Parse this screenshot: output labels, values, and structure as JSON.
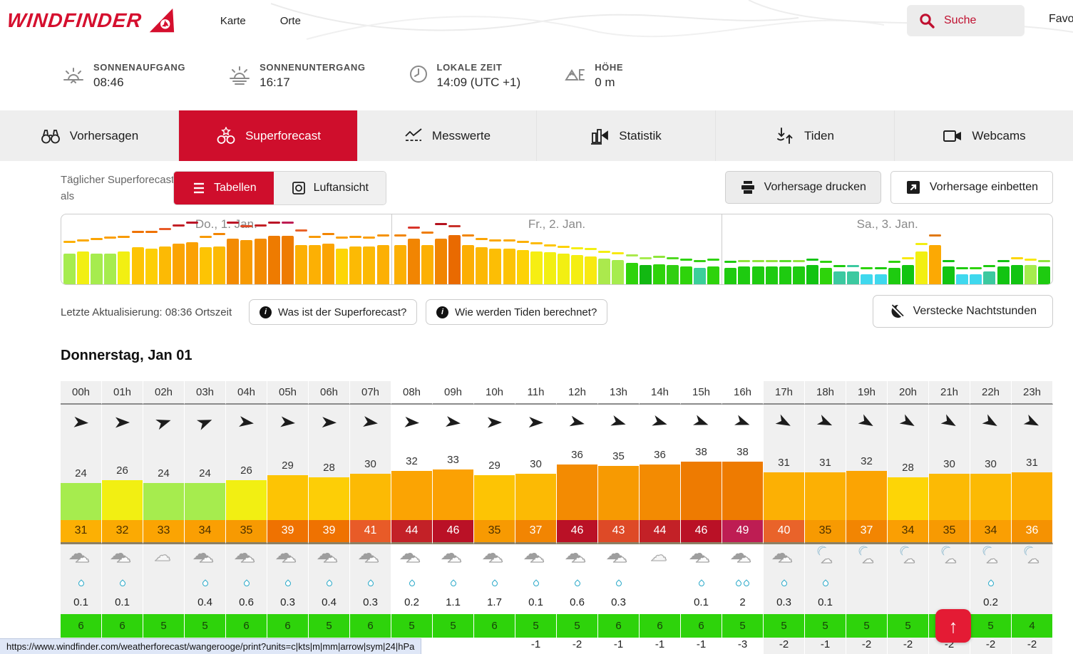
{
  "nav": {
    "brand": "WINDFINDER",
    "links": [
      {
        "label": "Karte"
      },
      {
        "label": "Orte"
      }
    ],
    "search_label": "Suche",
    "favorites_clipped": "Favo"
  },
  "infobar": {
    "items": [
      {
        "icon": "sunrise-icon",
        "label": "SONNENAUFGANG",
        "value": "08:46"
      },
      {
        "icon": "sunset-icon",
        "label": "SONNENUNTERGANG",
        "value": "16:17"
      },
      {
        "icon": "clock-icon",
        "label": "LOKALE ZEIT",
        "value": "14:09 (UTC +1)"
      },
      {
        "icon": "elevation-icon",
        "label": "HÖHE",
        "value": "0 m"
      }
    ]
  },
  "tabs": {
    "items": [
      {
        "label": "Vorhersagen",
        "icon": "binoculars-icon",
        "active": false
      },
      {
        "label": "Superforecast",
        "icon": "binoculars-star-icon",
        "active": true
      },
      {
        "label": "Messwerte",
        "icon": "measurements-chart-icon",
        "active": false
      },
      {
        "label": "Statistik",
        "icon": "statistics-bars-icon",
        "active": false
      },
      {
        "label": "Tiden",
        "icon": "tides-arrows-icon",
        "active": false
      },
      {
        "label": "Webcams",
        "icon": "webcam-icon",
        "active": false
      }
    ],
    "active_color": "#cf0e2c"
  },
  "controls": {
    "view_label": "Täglicher Superforecast als",
    "tables_label": "Tabellen",
    "aerial_label": "Luftansicht",
    "print_label": "Vorhersage drucken",
    "embed_label": "Vorhersage einbetten"
  },
  "meta": {
    "updated": "Letzte Aktualisierung: 08:36 Ortszeit",
    "info1": "Was ist der Superforecast?",
    "info2": "Wie werden Tiden berechnet?",
    "hide_night": "Verstecke Nachtstunden"
  },
  "day": {
    "heading": "Donnerstag, Jan 01"
  },
  "mini": {
    "bar_scale": 1.78,
    "days": [
      {
        "label": "Do., 1. Jan.",
        "bars": [
          24,
          26,
          24,
          24,
          26,
          29,
          28,
          30,
          32,
          33,
          29,
          30,
          36,
          35,
          36,
          38,
          38,
          31,
          31,
          32,
          28,
          30,
          30,
          31
        ],
        "colors": [
          "#a6ec4e",
          "#f2ef12",
          "#a6ec4e",
          "#a6ec4e",
          "#f2ef12",
          "#fdc404",
          "#fdce06",
          "#fcba04",
          "#fba403",
          "#fba103",
          "#fdc404",
          "#fcba04",
          "#f38b02",
          "#f79a02",
          "#f38b02",
          "#ee7b01",
          "#ee7b01",
          "#fcb004",
          "#fcb004",
          "#fba403",
          "#fdd506",
          "#fcba04",
          "#fcba04",
          "#fcb004"
        ],
        "dash": [
          31,
          32,
          33,
          34,
          35,
          39,
          39,
          41,
          44,
          46,
          35,
          37,
          46,
          43,
          44,
          46,
          49,
          40,
          35,
          37,
          34,
          35,
          34,
          36
        ],
        "dash_colors": [
          "#fcb004",
          "#fbaa03",
          "#fba403",
          "#fa9f03",
          "#f79a02",
          "#ef7201",
          "#ef7201",
          "#e85b28",
          "#c32127",
          "#ba1126",
          "#f79a02",
          "#f28502",
          "#ba1126",
          "#de4a27",
          "#c32127",
          "#ba1126",
          "#be1d53",
          "#e9632a",
          "#f79a02",
          "#f28502",
          "#fa9f03",
          "#f79a02",
          "#fa9f03",
          "#f59202"
        ]
      },
      {
        "label": "Fr., 2. Jan.",
        "bars": [
          31,
          36,
          31,
          36,
          39,
          31,
          29,
          28,
          28,
          27,
          26,
          25,
          24,
          23,
          22,
          20,
          19,
          17,
          15,
          16,
          15,
          14,
          13,
          14
        ],
        "colors": [
          "#fcb004",
          "#f18502",
          "#fcb004",
          "#f18502",
          "#e96a01",
          "#fcae04",
          "#fcb804",
          "#fcbe05",
          "#fcc305",
          "#fdd206",
          "#f6ee13",
          "#f2ef12",
          "#f2ef12",
          "#f4ee12",
          "#f8e911",
          "#abe94d",
          "#a6ec4e",
          "#2ed30b",
          "#12b812",
          "#2ed30b",
          "#30cf12",
          "#2ed30b",
          "#3bcf9a",
          "#2ed30b"
        ],
        "dash": [
          36,
          42,
          38,
          45,
          43,
          36,
          33,
          32,
          32,
          31,
          30,
          28,
          27,
          26,
          25,
          23,
          22,
          20,
          18,
          19,
          18,
          17,
          16,
          17
        ],
        "dash_colors": [
          "#f18502",
          "#d8352a",
          "#ef7b01",
          "#b5121f",
          "#c8322a",
          "#f18502",
          "#fba403",
          "#fba803",
          "#fbaa03",
          "#fcb004",
          "#fcba04",
          "#fdc604",
          "#fdd206",
          "#f6ee13",
          "#f2ef12",
          "#f4ee12",
          "#f8e911",
          "#abe94d",
          "#a6ec4e",
          "#8fe53b",
          "#4fd921",
          "#2ed30b",
          "#35d013",
          "#2ed30b"
        ]
      },
      {
        "label": "Sa., 3. Jan.",
        "bars": [
          13,
          14,
          14,
          14,
          14,
          14,
          15,
          13,
          10,
          10,
          8,
          8,
          13,
          15,
          26,
          31,
          14,
          8,
          8,
          10,
          14,
          15,
          15,
          14
        ],
        "colors": [
          "#1ecb10",
          "#1ecb10",
          "#1ecb10",
          "#1ecb10",
          "#1ecb10",
          "#1ecb10",
          "#12c412",
          "#2ed30b",
          "#3cc9a0",
          "#3cc9a0",
          "#3fd8ee",
          "#3fd8ee",
          "#1ecb10",
          "#12c412",
          "#f2ef12",
          "#fca903",
          "#12c412",
          "#3fd8ee",
          "#3fd8ee",
          "#3cc9a0",
          "#12c412",
          "#12c412",
          "#a6ec4e",
          "#1ecb10"
        ],
        "dash": [
          15,
          16,
          16,
          16,
          16,
          16,
          17,
          15,
          12,
          12,
          10,
          10,
          15,
          18,
          29,
          36,
          16,
          10,
          10,
          12,
          16,
          18,
          17,
          16
        ],
        "dash_colors": [
          "#1ecb10",
          "#8fe53b",
          "#8fe53b",
          "#8fe53b",
          "#58dd2a",
          "#8fe53b",
          "#12c412",
          "#2ed30b",
          "#1ecb10",
          "#3cc9a0",
          "#2ed30b",
          "#1ecb10",
          "#2ed30b",
          "#f8e911",
          "#f2ee12",
          "#e07812",
          "#12c412",
          "#1ecb10",
          "#2ed30b",
          "#1ecb10",
          "#12c412",
          "#fdd506",
          "#f8e911",
          "#8fe53b"
        ]
      }
    ]
  },
  "table": {
    "hours": [
      "00h",
      "01h",
      "02h",
      "03h",
      "04h",
      "05h",
      "06h",
      "07h",
      "08h",
      "09h",
      "10h",
      "11h",
      "12h",
      "13h",
      "14h",
      "15h",
      "16h",
      "17h",
      "18h",
      "19h",
      "20h",
      "21h",
      "22h",
      "23h"
    ],
    "night": [
      1,
      1,
      1,
      1,
      1,
      1,
      1,
      1,
      0,
      0,
      0,
      0,
      0,
      0,
      0,
      0,
      0,
      1,
      1,
      1,
      1,
      1,
      1,
      1
    ],
    "dir_deg": [
      4,
      0,
      -18,
      -22,
      8,
      6,
      2,
      8,
      4,
      8,
      0,
      2,
      12,
      16,
      16,
      20,
      20,
      28,
      24,
      30,
      30,
      30,
      30,
      26
    ],
    "speeds": [
      24,
      26,
      24,
      24,
      26,
      29,
      28,
      30,
      32,
      33,
      29,
      30,
      36,
      35,
      36,
      38,
      38,
      31,
      31,
      32,
      28,
      30,
      30,
      31
    ],
    "speed_colors": [
      "#a6ec4e",
      "#f2ef12",
      "#a6ec4e",
      "#a6ec4e",
      "#f2ef12",
      "#fdc404",
      "#fdce06",
      "#fcba04",
      "#fba403",
      "#fba103",
      "#fdc404",
      "#fcba04",
      "#f38b02",
      "#f79a02",
      "#f38b02",
      "#ee7b01",
      "#ee7b01",
      "#fcb004",
      "#fcb004",
      "#fba403",
      "#fdd506",
      "#fcba04",
      "#fcba04",
      "#fcb004"
    ],
    "gusts": [
      31,
      32,
      33,
      34,
      35,
      39,
      39,
      41,
      44,
      46,
      35,
      37,
      46,
      43,
      44,
      46,
      49,
      40,
      35,
      37,
      34,
      35,
      34,
      36
    ],
    "gust_colors": [
      "#fcb004",
      "#fbaa03",
      "#fba403",
      "#fa9f03",
      "#f79a02",
      "#ef7201",
      "#ef7201",
      "#e85b28",
      "#c32127",
      "#ba1126",
      "#f79a02",
      "#f28502",
      "#ba1126",
      "#de4a27",
      "#c32127",
      "#ba1126",
      "#be1d53",
      "#e9632a",
      "#f79a02",
      "#f28502",
      "#fa9f03",
      "#f79a02",
      "#fa9f03",
      "#f59202"
    ],
    "gust_text_colors": [
      "#4a3000",
      "#4a3000",
      "#4a3000",
      "#4a3000",
      "#4a3000",
      "#ffffff",
      "#ffffff",
      "#ffffff",
      "#ffffff",
      "#ffffff",
      "#4a3000",
      "#ffffff",
      "#ffffff",
      "#ffffff",
      "#ffffff",
      "#ffffff",
      "#ffffff",
      "#ffffff",
      "#4a3000",
      "#ffffff",
      "#4a3000",
      "#4a3000",
      "#4a3000",
      "#ffffff"
    ],
    "cloud_types": [
      "clouds",
      "clouds",
      "cloud",
      "clouds",
      "clouds",
      "clouds",
      "clouds",
      "clouds",
      "clouds",
      "clouds",
      "clouds",
      "clouds",
      "clouds",
      "clouds",
      "cloud",
      "clouds",
      "clouds",
      "clouds",
      "mooncloud",
      "mooncloud",
      "mooncloud",
      "mooncloud",
      "mooncloud",
      "mooncloud"
    ],
    "drops": [
      1,
      1,
      0,
      1,
      1,
      1,
      1,
      1,
      1,
      1,
      1,
      1,
      1,
      1,
      0,
      1,
      2,
      1,
      1,
      0,
      0,
      0,
      1,
      0
    ],
    "precip": [
      "0.1",
      "0.1",
      "",
      "0.4",
      "0.6",
      "0.3",
      "0.4",
      "0.3",
      "0.2",
      "1.1",
      "1.7",
      "0.1",
      "0.6",
      "0.3",
      "",
      "0.1",
      "2",
      "0.3",
      "0.1",
      "",
      "",
      "",
      "0.2",
      ""
    ],
    "wave": [
      "6",
      "6",
      "5",
      "5",
      "6",
      "6",
      "5",
      "6",
      "5",
      "5",
      "6",
      "5",
      "5",
      "6",
      "6",
      "6",
      "5",
      "5",
      "5",
      "5",
      "5",
      "5",
      "5",
      "4"
    ],
    "wave_color": "#2ed30b",
    "temps": [
      "",
      "",
      "",
      "",
      "",
      "",
      "",
      "",
      "",
      "",
      "",
      "-1",
      "-2",
      "-1",
      "-1",
      "-1",
      "-3",
      "-2",
      "-1",
      "-2",
      "-2",
      "-2",
      "-2",
      "-2"
    ]
  },
  "statusbar": {
    "url": "https://www.windfinder.com/weatherforecast/wangerooge/print?units=c|kts|m|mm|arrow|sym|24|hPa"
  },
  "scroll_top": {
    "icon": "arrow-up-icon"
  }
}
